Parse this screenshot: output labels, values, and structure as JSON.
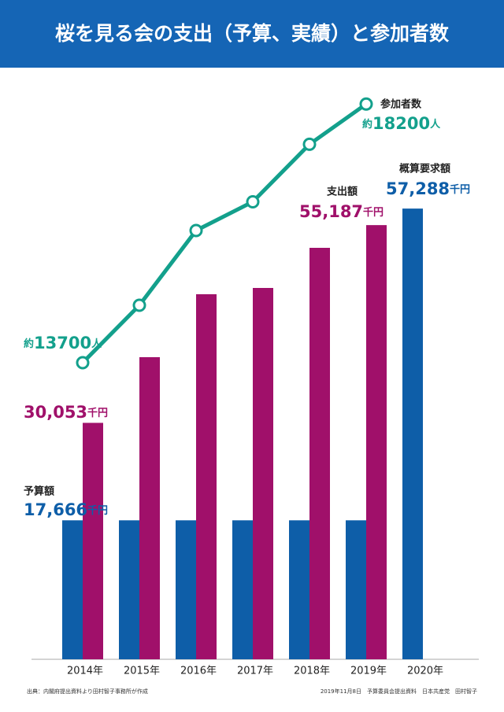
{
  "chart_data": {
    "type": "bar-line",
    "title": "桜を見る会の支出（予算、実績）と参加者数",
    "categories": [
      "2014年",
      "2015年",
      "2016年",
      "2017年",
      "2018年",
      "2019年",
      "2020年"
    ],
    "annotation": "概算要求額",
    "ylim": [
      0,
      76200
    ],
    "y2lim": [
      8540,
      18970
    ],
    "series": [
      {
        "name": "予算額",
        "type": "bar",
        "color": "#0e5ea8",
        "unit": "千円",
        "values": [
          17666,
          17666,
          17666,
          17666,
          17666,
          17666,
          57288
        ],
        "value_labels": [
          "17,666",
          null,
          null,
          null,
          null,
          null,
          "57,288"
        ]
      },
      {
        "name": "支出額",
        "type": "bar",
        "color": "#a0106a",
        "unit": "千円",
        "values": [
          30053,
          38400,
          46400,
          47200,
          52300,
          55187,
          null
        ],
        "value_labels": [
          "30,053",
          null,
          null,
          null,
          null,
          "55,187",
          null
        ]
      },
      {
        "name": "参加者数",
        "type": "line",
        "axis": "y2",
        "color": "#13a08c",
        "prefix": "約",
        "unit": "人",
        "values": [
          13700,
          14700,
          16000,
          16500,
          17500,
          18200,
          null
        ],
        "value_labels": [
          "13700",
          null,
          null,
          null,
          null,
          "18200",
          null
        ]
      }
    ]
  },
  "source": "出典：内閣府提出資料より田村智子事務所が作成",
  "footnote": "2019年11月8日　予算委員会提出資料　日本共産党　田村智子"
}
